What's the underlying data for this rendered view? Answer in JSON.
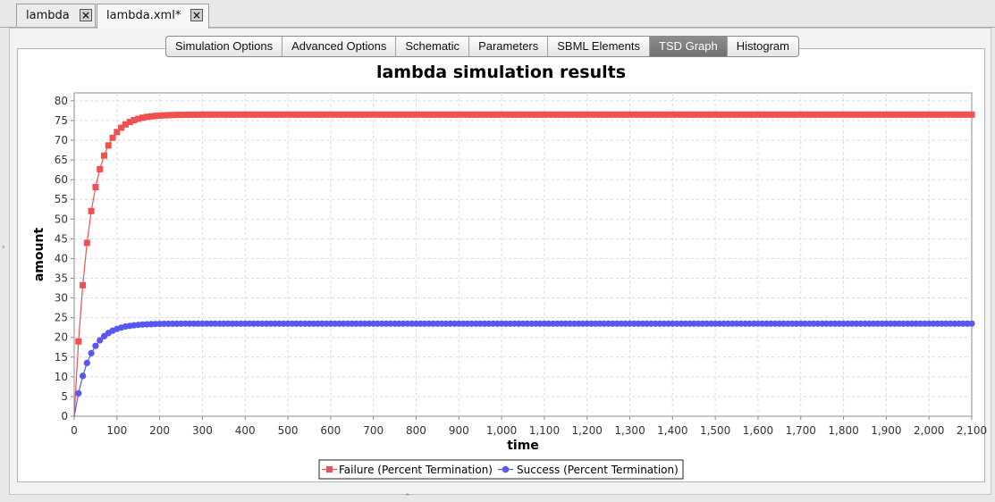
{
  "doc_tabs": [
    {
      "label": "lambda",
      "active": false
    },
    {
      "label": "lambda.xml*",
      "active": true
    }
  ],
  "sub_tabs": [
    {
      "label": "Simulation Options",
      "selected": false
    },
    {
      "label": "Advanced Options",
      "selected": false
    },
    {
      "label": "Schematic",
      "selected": false
    },
    {
      "label": "Parameters",
      "selected": false
    },
    {
      "label": "SBML Elements",
      "selected": false
    },
    {
      "label": "TSD Graph",
      "selected": true
    },
    {
      "label": "Histogram",
      "selected": false
    }
  ],
  "chart_data": {
    "type": "line",
    "title": "lambda simulation results",
    "xlabel": "time",
    "ylabel": "amount",
    "xlim": [
      0,
      2100
    ],
    "ylim": [
      0,
      82
    ],
    "x_ticks": [
      "0",
      "100",
      "200",
      "300",
      "400",
      "500",
      "600",
      "700",
      "800",
      "900",
      "1,000",
      "1,100",
      "1,200",
      "1,300",
      "1,400",
      "1,500",
      "1,600",
      "1,700",
      "1,800",
      "1,900",
      "2,000",
      "2,100"
    ],
    "y_ticks": [
      "0",
      "5",
      "10",
      "15",
      "20",
      "25",
      "30",
      "35",
      "40",
      "45",
      "50",
      "55",
      "60",
      "65",
      "70",
      "75",
      "80"
    ],
    "grid": true,
    "legend_position": "bottom",
    "sample_interval": 10,
    "series": [
      {
        "name": "Failure (Percent Termination)",
        "color": "#f05050",
        "marker": "square",
        "start": 0,
        "plateau": 76.5,
        "rate": 0.0285
      },
      {
        "name": "Success (Percent Termination)",
        "color": "#5858f0",
        "marker": "circle",
        "start": 0,
        "plateau": 23.5,
        "rate": 0.0285
      }
    ]
  }
}
